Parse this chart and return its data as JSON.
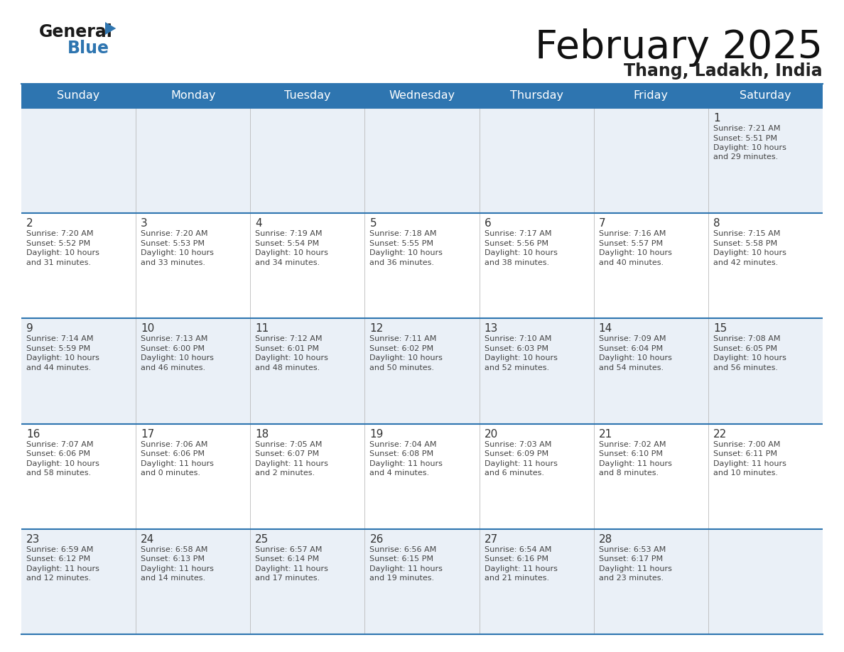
{
  "title": "February 2025",
  "subtitle": "Thang, Ladakh, India",
  "header_color": "#2e75b0",
  "header_text_color": "#ffffff",
  "cell_bg_light": "#eaf0f7",
  "cell_bg_white": "#ffffff",
  "day_headers": [
    "Sunday",
    "Monday",
    "Tuesday",
    "Wednesday",
    "Thursday",
    "Friday",
    "Saturday"
  ],
  "grid_line_color": "#2e75b0",
  "date_text_color": "#333333",
  "info_text_color": "#444444",
  "background_color": "#ffffff",
  "logo_general_color": "#1a1a1a",
  "logo_blue_color": "#2e75b0",
  "logo_triangle_color": "#2e75b0",
  "calendar_data": [
    [
      null,
      null,
      null,
      null,
      null,
      null,
      {
        "day": "1",
        "sunrise": "7:21 AM",
        "sunset": "5:51 PM",
        "daylight_h": "10 hours",
        "daylight_m": "and 29 minutes."
      }
    ],
    [
      {
        "day": "2",
        "sunrise": "7:20 AM",
        "sunset": "5:52 PM",
        "daylight_h": "10 hours",
        "daylight_m": "and 31 minutes."
      },
      {
        "day": "3",
        "sunrise": "7:20 AM",
        "sunset": "5:53 PM",
        "daylight_h": "10 hours",
        "daylight_m": "and 33 minutes."
      },
      {
        "day": "4",
        "sunrise": "7:19 AM",
        "sunset": "5:54 PM",
        "daylight_h": "10 hours",
        "daylight_m": "and 34 minutes."
      },
      {
        "day": "5",
        "sunrise": "7:18 AM",
        "sunset": "5:55 PM",
        "daylight_h": "10 hours",
        "daylight_m": "and 36 minutes."
      },
      {
        "day": "6",
        "sunrise": "7:17 AM",
        "sunset": "5:56 PM",
        "daylight_h": "10 hours",
        "daylight_m": "and 38 minutes."
      },
      {
        "day": "7",
        "sunrise": "7:16 AM",
        "sunset": "5:57 PM",
        "daylight_h": "10 hours",
        "daylight_m": "and 40 minutes."
      },
      {
        "day": "8",
        "sunrise": "7:15 AM",
        "sunset": "5:58 PM",
        "daylight_h": "10 hours",
        "daylight_m": "and 42 minutes."
      }
    ],
    [
      {
        "day": "9",
        "sunrise": "7:14 AM",
        "sunset": "5:59 PM",
        "daylight_h": "10 hours",
        "daylight_m": "and 44 minutes."
      },
      {
        "day": "10",
        "sunrise": "7:13 AM",
        "sunset": "6:00 PM",
        "daylight_h": "10 hours",
        "daylight_m": "and 46 minutes."
      },
      {
        "day": "11",
        "sunrise": "7:12 AM",
        "sunset": "6:01 PM",
        "daylight_h": "10 hours",
        "daylight_m": "and 48 minutes."
      },
      {
        "day": "12",
        "sunrise": "7:11 AM",
        "sunset": "6:02 PM",
        "daylight_h": "10 hours",
        "daylight_m": "and 50 minutes."
      },
      {
        "day": "13",
        "sunrise": "7:10 AM",
        "sunset": "6:03 PM",
        "daylight_h": "10 hours",
        "daylight_m": "and 52 minutes."
      },
      {
        "day": "14",
        "sunrise": "7:09 AM",
        "sunset": "6:04 PM",
        "daylight_h": "10 hours",
        "daylight_m": "and 54 minutes."
      },
      {
        "day": "15",
        "sunrise": "7:08 AM",
        "sunset": "6:05 PM",
        "daylight_h": "10 hours",
        "daylight_m": "and 56 minutes."
      }
    ],
    [
      {
        "day": "16",
        "sunrise": "7:07 AM",
        "sunset": "6:06 PM",
        "daylight_h": "10 hours",
        "daylight_m": "and 58 minutes."
      },
      {
        "day": "17",
        "sunrise": "7:06 AM",
        "sunset": "6:06 PM",
        "daylight_h": "11 hours",
        "daylight_m": "and 0 minutes."
      },
      {
        "day": "18",
        "sunrise": "7:05 AM",
        "sunset": "6:07 PM",
        "daylight_h": "11 hours",
        "daylight_m": "and 2 minutes."
      },
      {
        "day": "19",
        "sunrise": "7:04 AM",
        "sunset": "6:08 PM",
        "daylight_h": "11 hours",
        "daylight_m": "and 4 minutes."
      },
      {
        "day": "20",
        "sunrise": "7:03 AM",
        "sunset": "6:09 PM",
        "daylight_h": "11 hours",
        "daylight_m": "and 6 minutes."
      },
      {
        "day": "21",
        "sunrise": "7:02 AM",
        "sunset": "6:10 PM",
        "daylight_h": "11 hours",
        "daylight_m": "and 8 minutes."
      },
      {
        "day": "22",
        "sunrise": "7:00 AM",
        "sunset": "6:11 PM",
        "daylight_h": "11 hours",
        "daylight_m": "and 10 minutes."
      }
    ],
    [
      {
        "day": "23",
        "sunrise": "6:59 AM",
        "sunset": "6:12 PM",
        "daylight_h": "11 hours",
        "daylight_m": "and 12 minutes."
      },
      {
        "day": "24",
        "sunrise": "6:58 AM",
        "sunset": "6:13 PM",
        "daylight_h": "11 hours",
        "daylight_m": "and 14 minutes."
      },
      {
        "day": "25",
        "sunrise": "6:57 AM",
        "sunset": "6:14 PM",
        "daylight_h": "11 hours",
        "daylight_m": "and 17 minutes."
      },
      {
        "day": "26",
        "sunrise": "6:56 AM",
        "sunset": "6:15 PM",
        "daylight_h": "11 hours",
        "daylight_m": "and 19 minutes."
      },
      {
        "day": "27",
        "sunrise": "6:54 AM",
        "sunset": "6:16 PM",
        "daylight_h": "11 hours",
        "daylight_m": "and 21 minutes."
      },
      {
        "day": "28",
        "sunrise": "6:53 AM",
        "sunset": "6:17 PM",
        "daylight_h": "11 hours",
        "daylight_m": "and 23 minutes."
      },
      null
    ]
  ]
}
